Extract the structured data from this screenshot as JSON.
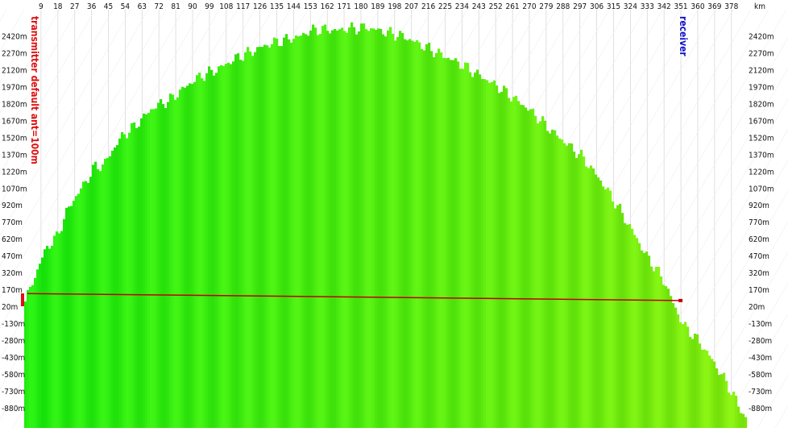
{
  "chart_data": {
    "type": "area",
    "title": "",
    "xlabel": "",
    "x_unit": "km",
    "ylabel": "",
    "xlim": [
      0,
      388
    ],
    "ylim": [
      -1000,
      2520
    ],
    "x_ticks": [
      9,
      18,
      27,
      36,
      45,
      54,
      63,
      72,
      81,
      90,
      99,
      108,
      117,
      126,
      135,
      144,
      153,
      162,
      171,
      180,
      189,
      198,
      207,
      216,
      225,
      234,
      243,
      252,
      261,
      270,
      279,
      288,
      297,
      306,
      315,
      324,
      333,
      342,
      351,
      360,
      369,
      378
    ],
    "y_ticks": [
      "2420m",
      "2270m",
      "2120m",
      "1970m",
      "1820m",
      "1670m",
      "1520m",
      "1370m",
      "1220m",
      "1070m",
      "920m",
      "770m",
      "620m",
      "470m",
      "320m",
      "170m",
      "20m",
      "-130m",
      "-280m",
      "-430m",
      "-580m",
      "-730m",
      "-880m"
    ],
    "y_tick_values": [
      2420,
      2270,
      2120,
      1970,
      1820,
      1670,
      1520,
      1370,
      1220,
      1070,
      920,
      770,
      620,
      470,
      320,
      170,
      20,
      -130,
      -280,
      -430,
      -580,
      -730,
      -880
    ],
    "terrain_profile": {
      "x": [
        0,
        3,
        8,
        12,
        17,
        22,
        27,
        32,
        37,
        42,
        47,
        52,
        57,
        62,
        67,
        72,
        77,
        82,
        87,
        92,
        97,
        102,
        107,
        112,
        117,
        122,
        127,
        132,
        137,
        142,
        147,
        152,
        157,
        162,
        167,
        172,
        177,
        182,
        187,
        192,
        197,
        202,
        207,
        212,
        217,
        222,
        227,
        232,
        237,
        242,
        247,
        252,
        257,
        262,
        267,
        272,
        277,
        282,
        287,
        292,
        297,
        302,
        307,
        312,
        317,
        322,
        327,
        332,
        337,
        342,
        347,
        352,
        357,
        362,
        367,
        372,
        377,
        382,
        386
      ],
      "y": [
        80,
        190,
        420,
        560,
        640,
        860,
        1000,
        1120,
        1260,
        1280,
        1420,
        1540,
        1600,
        1680,
        1770,
        1820,
        1850,
        1920,
        1990,
        2050,
        2090,
        2120,
        2170,
        2220,
        2260,
        2290,
        2330,
        2360,
        2380,
        2400,
        2420,
        2470,
        2480,
        2480,
        2470,
        2490,
        2490,
        2500,
        2480,
        2460,
        2440,
        2420,
        2380,
        2340,
        2300,
        2260,
        2220,
        2180,
        2130,
        2080,
        2030,
        1980,
        1920,
        1860,
        1800,
        1730,
        1650,
        1570,
        1500,
        1430,
        1360,
        1260,
        1150,
        1030,
        900,
        760,
        620,
        470,
        360,
        230,
        20,
        -150,
        -230,
        -330,
        -450,
        -580,
        -720,
        -880,
        -1000
      ]
    },
    "line_of_sight": {
      "x": [
        0,
        351
      ],
      "y": [
        130,
        75
      ]
    },
    "transmitter_label": "transmitter  default ant=100m",
    "receiver_label": "receiver",
    "colors": {
      "terrain_green": "#22e810",
      "terrain_yellowgreen": "#8ee81c",
      "line_of_sight": "#c00000",
      "transmitter_label": "#e01010",
      "receiver_label": "#1010cc",
      "grid": "#d8d8d8"
    }
  }
}
